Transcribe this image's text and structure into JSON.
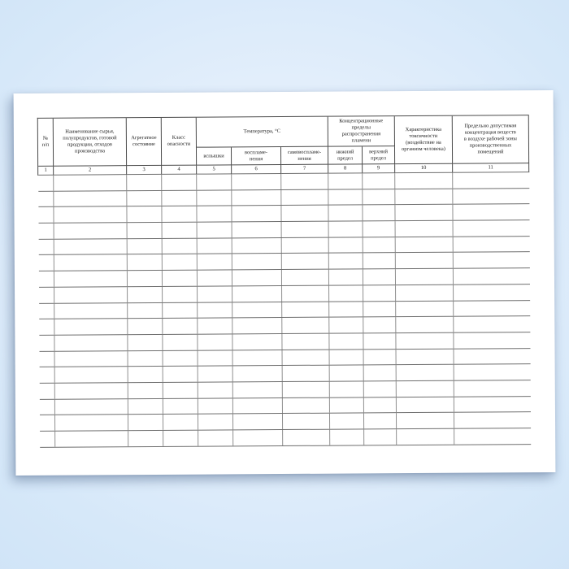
{
  "colors": {
    "background_center": "#eef5fd",
    "background_edge": "#cde2f6",
    "paper": "#ffffff",
    "header_line": "#4a4a4a",
    "row_line": "#6e6e6e",
    "column_line": "#8f8f8f",
    "text": "#1c1c1c"
  },
  "table": {
    "headers": {
      "num": "№\nп/п",
      "name": "Наименование сырья,\nполупродуктов, готовой\nпродукции, отходов\nпроизводства",
      "aggregate_state": "Агрегатное\nсостояние",
      "hazard_class": "Класс\nопасности",
      "temperature_group": "Температура, °С",
      "temp_flash": "вспышки",
      "temp_ignition": "воспламе-\nнения",
      "temp_self_ignition": "самовоспламе-\nнения",
      "concentration_group": "Концентрационные\nпределы\nраспространения\nпламени",
      "lower_limit": "нижний\nпредел",
      "upper_limit": "верхний\nпредел",
      "toxicity": "Характеристика\nтоксичности\n(воздействие на\nорганизм человека)",
      "max_concentration": "Предельно допустимая\nконцентрация веществ\nв воздухе рабочей зоны\nпроизводственных\nпомещений"
    },
    "numbering": [
      "1",
      "2",
      "3",
      "4",
      "5",
      "6",
      "7",
      "8",
      "9",
      "10",
      "11"
    ],
    "empty_row_count": 17
  }
}
